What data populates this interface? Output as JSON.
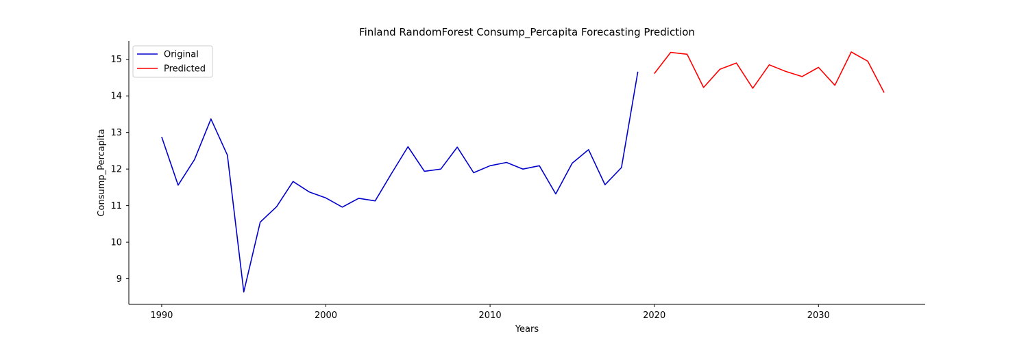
{
  "chart_data": {
    "type": "line",
    "title": "Finland RandomForest Consump_Percapita Forecasting Prediction",
    "xlabel": "Years",
    "ylabel": "Consump_Percapita",
    "xlim": [
      1988,
      2036.5
    ],
    "ylim": [
      8.3,
      15.5
    ],
    "x_ticks": [
      1990,
      2000,
      2010,
      2020,
      2030
    ],
    "y_ticks": [
      9,
      10,
      11,
      12,
      13,
      14,
      15
    ],
    "grid": false,
    "legend_position": "top-left",
    "series": [
      {
        "name": "Original",
        "color": "#0000cc",
        "x": [
          1990,
          1991,
          1992,
          1993,
          1994,
          1995,
          1996,
          1997,
          1998,
          1999,
          2000,
          2001,
          2002,
          2003,
          2004,
          2005,
          2006,
          2007,
          2008,
          2009,
          2010,
          2011,
          2012,
          2013,
          2014,
          2015,
          2016,
          2017,
          2018,
          2019
        ],
        "values": [
          12.88,
          11.56,
          12.26,
          13.37,
          12.38,
          8.64,
          10.55,
          10.97,
          11.66,
          11.37,
          11.21,
          10.96,
          11.2,
          11.13,
          11.88,
          12.61,
          11.94,
          12.0,
          12.6,
          11.9,
          12.09,
          12.18,
          12.0,
          12.09,
          11.32,
          12.16,
          12.53,
          11.57,
          12.04,
          14.66
        ]
      },
      {
        "name": "Predicted",
        "color": "#ff0000",
        "x": [
          2020,
          2021,
          2022,
          2023,
          2024,
          2025,
          2026,
          2027,
          2028,
          2029,
          2030,
          2031,
          2032,
          2033,
          2034
        ],
        "values": [
          14.61,
          15.19,
          15.14,
          14.23,
          14.73,
          14.9,
          14.21,
          14.85,
          14.67,
          14.53,
          14.78,
          14.29,
          15.2,
          14.95,
          14.09
        ]
      }
    ]
  }
}
